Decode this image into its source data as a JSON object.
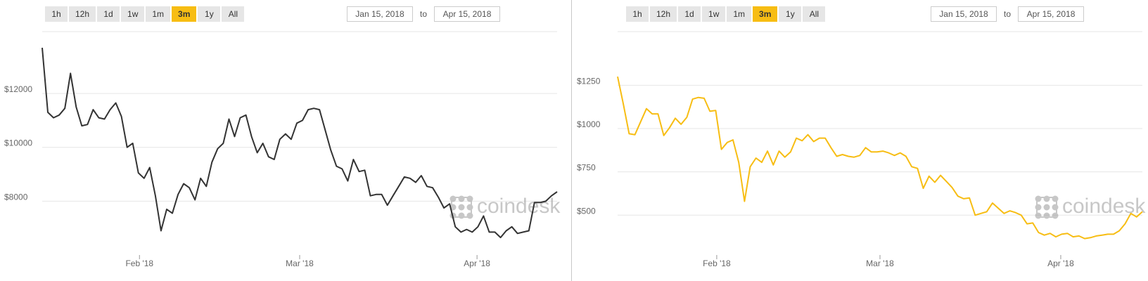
{
  "range_buttons": [
    "1h",
    "12h",
    "1d",
    "1w",
    "1m",
    "3m",
    "1y",
    "All"
  ],
  "active_range": "3m",
  "date_from": "Jan 15, 2018",
  "date_to": "Apr 15, 2018",
  "to_label": "to",
  "watermark": "coindesk",
  "colors": {
    "left_line": "#333333",
    "right_line": "#f7bd13",
    "active_button": "#f7bd13",
    "grid": "#e6e6e6"
  },
  "chart_data": [
    {
      "type": "line",
      "title": "",
      "xlabel": "",
      "ylabel": "",
      "series_color": "#333333",
      "x_start": "2018-01-15",
      "x_end": "2018-04-15",
      "ylim": [
        6000,
        14300
      ],
      "y_ticks": [
        8000,
        10000,
        12000
      ],
      "y_tick_labels": [
        "$8000",
        "$10000",
        "$12000"
      ],
      "x_ticks": [
        "2018-02-01",
        "2018-03-01",
        "2018-04-01"
      ],
      "x_tick_labels": [
        "Feb '18",
        "Mar '18",
        "Apr '18"
      ],
      "grid": true,
      "values": [
        13700,
        11300,
        11100,
        11200,
        11450,
        12750,
        11500,
        10800,
        10850,
        11400,
        11100,
        11050,
        11400,
        11650,
        11150,
        10000,
        10150,
        9050,
        8850,
        9250,
        8200,
        6900,
        7700,
        7550,
        8250,
        8650,
        8500,
        8050,
        8850,
        8550,
        9450,
        9950,
        10150,
        11050,
        10400,
        11100,
        11200,
        10400,
        9800,
        10150,
        9650,
        9550,
        10300,
        10500,
        10300,
        10900,
        11000,
        11400,
        11450,
        11400,
        10650,
        9900,
        9300,
        9200,
        8750,
        9550,
        9100,
        9150,
        8200,
        8250,
        8250,
        7850,
        8200,
        8550,
        8900,
        8850,
        8700,
        8950,
        8550,
        8500,
        8150,
        7750,
        7900,
        7050,
        6850,
        6950,
        6850,
        7050,
        7450,
        6850,
        6850,
        6650,
        6900,
        7050,
        6800,
        6850,
        6900,
        7950,
        7950,
        8000,
        8200,
        8350
      ]
    },
    {
      "type": "line",
      "title": "",
      "xlabel": "",
      "ylabel": "",
      "series_color": "#f7bd13",
      "x_start": "2018-01-15",
      "x_end": "2018-04-15",
      "ylim": [
        270,
        1560
      ],
      "y_ticks": [
        500,
        750,
        1000,
        1250
      ],
      "y_tick_labels": [
        "$500",
        "$750",
        "$1000",
        "$1250"
      ],
      "x_ticks": [
        "2018-02-01",
        "2018-03-01",
        "2018-04-01"
      ],
      "x_tick_labels": [
        "Feb '18",
        "Mar '18",
        "Apr '18"
      ],
      "grid": true,
      "values": [
        1300,
        1140,
        970,
        965,
        1040,
        1115,
        1085,
        1085,
        960,
        1005,
        1060,
        1025,
        1065,
        1170,
        1180,
        1175,
        1100,
        1105,
        880,
        920,
        935,
        805,
        580,
        780,
        830,
        805,
        870,
        790,
        870,
        835,
        865,
        945,
        930,
        965,
        925,
        945,
        945,
        890,
        840,
        850,
        840,
        835,
        845,
        890,
        865,
        865,
        870,
        860,
        845,
        860,
        840,
        780,
        770,
        655,
        725,
        690,
        730,
        695,
        660,
        610,
        595,
        600,
        500,
        510,
        520,
        570,
        540,
        510,
        525,
        515,
        500,
        450,
        455,
        400,
        385,
        395,
        375,
        390,
        395,
        375,
        380,
        365,
        370,
        380,
        385,
        390,
        390,
        410,
        450,
        510,
        490,
        520
      ]
    }
  ]
}
